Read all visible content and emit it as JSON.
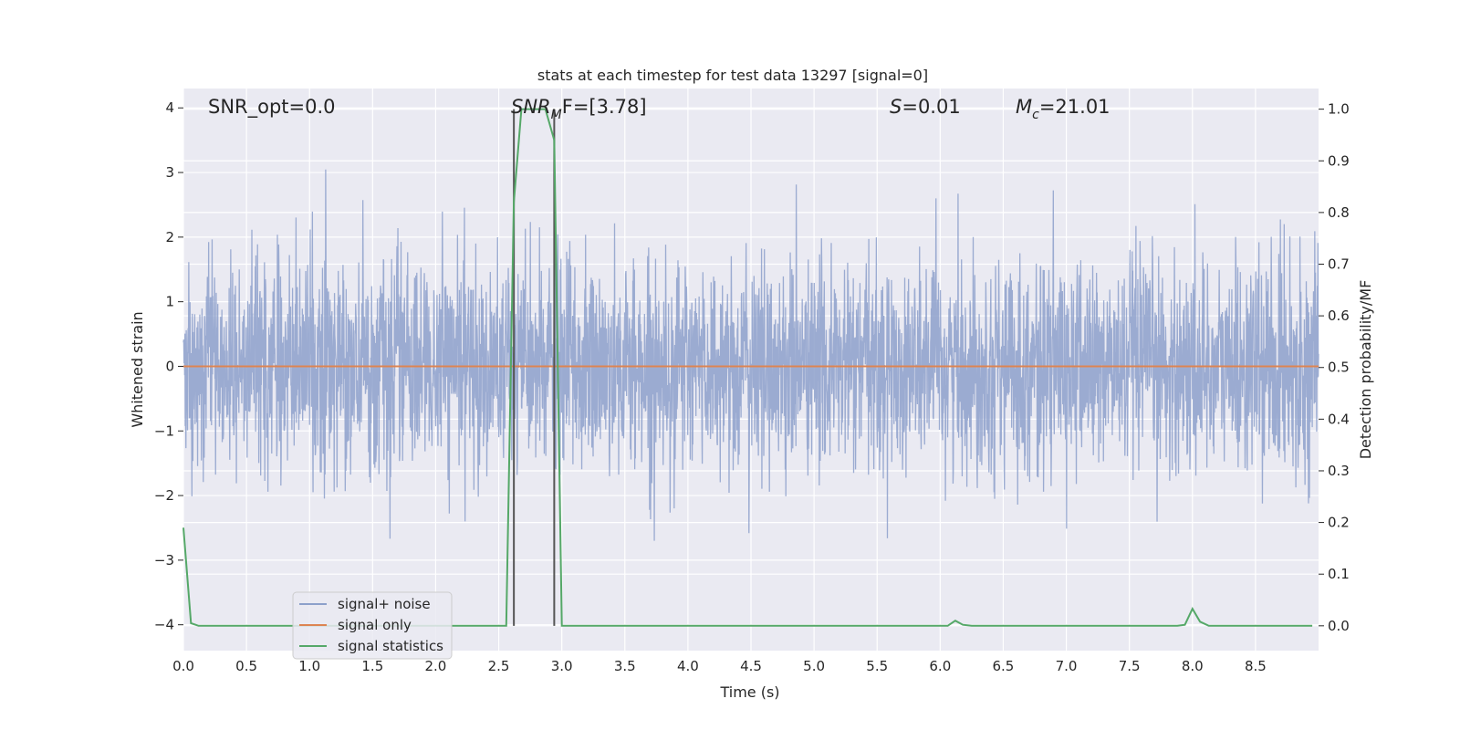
{
  "chart_data": {
    "type": "line",
    "title": "stats at each timestep for test data 13297 [signal=0]",
    "xlabel": "Time (s)",
    "ylabel_left": "Whitened strain",
    "ylabel_right": "Detection probability/MF",
    "xlim": [
      0.0,
      9.0
    ],
    "ylim_left": [
      -4.4,
      4.3
    ],
    "ylim_right": [
      -0.048,
      1.04
    ],
    "grid": true,
    "legend_placement": "lower-left",
    "x_ticks": [
      "0.0",
      "0.5",
      "1.0",
      "1.5",
      "2.0",
      "2.5",
      "3.0",
      "3.5",
      "4.0",
      "4.5",
      "5.0",
      "5.5",
      "6.0",
      "6.5",
      "7.0",
      "7.5",
      "8.0",
      "8.5"
    ],
    "y_left_ticks": [
      "−4",
      "−3",
      "−2",
      "−1",
      "0",
      "1",
      "2",
      "3",
      "4"
    ],
    "y_right_ticks": [
      "0.0",
      "0.1",
      "0.2",
      "0.3",
      "0.4",
      "0.5",
      "0.6",
      "0.7",
      "0.8",
      "0.9",
      "1.0"
    ],
    "annotations": {
      "snr_opt": "SNR_opt=0.0",
      "snr_mf_main": "SNR",
      "snr_mf_sub": "M",
      "snr_mf_rest": "F=[3.78]",
      "s_label": "S",
      "s_value": "=0.01",
      "mc_main": "M",
      "mc_sub": "c",
      "mc_value": "=21.01"
    },
    "vertical_markers_x": [
      2.62,
      2.94
    ],
    "series": [
      {
        "name": "signal+ noise",
        "axis": "left",
        "color": "#8da0cb",
        "description_values": {
          "type": "noise",
          "sigma": 0.8,
          "mean": 0.0
        }
      },
      {
        "name": "signal only",
        "axis": "left",
        "color": "#dd8452",
        "x": [
          0.0,
          9.0
        ],
        "y": [
          0.0,
          0.0
        ]
      },
      {
        "name": "signal statistics",
        "axis": "right",
        "color": "#55a868",
        "x": [
          0.0,
          0.06,
          0.12,
          0.5,
          1.0,
          1.5,
          2.0,
          2.5,
          2.56,
          2.62,
          2.68,
          2.75,
          2.82,
          2.87,
          2.94,
          3.0,
          3.5,
          4.0,
          4.5,
          5.0,
          5.5,
          6.0,
          6.06,
          6.12,
          6.18,
          6.25,
          6.5,
          7.0,
          7.5,
          7.88,
          7.94,
          8.0,
          8.06,
          8.13,
          8.5,
          8.95
        ],
        "y": [
          0.19,
          0.005,
          0.0,
          0.0,
          0.0,
          0.0,
          0.0,
          0.0,
          0.0,
          0.82,
          1.0,
          1.0,
          1.0,
          1.0,
          0.94,
          0.0,
          0.0,
          0.0,
          0.0,
          0.0,
          0.0,
          0.0,
          0.0,
          0.01,
          0.002,
          0.0,
          0.0,
          0.0,
          0.0,
          0.0,
          0.002,
          0.033,
          0.008,
          0.0,
          0.0,
          0.0
        ]
      }
    ]
  },
  "colors": {
    "background": "#eaeaf2",
    "grid": "#ffffff",
    "noise": "#8da0cb",
    "signal_only": "#dd8452",
    "stats": "#55a868",
    "marker": "#555555"
  }
}
